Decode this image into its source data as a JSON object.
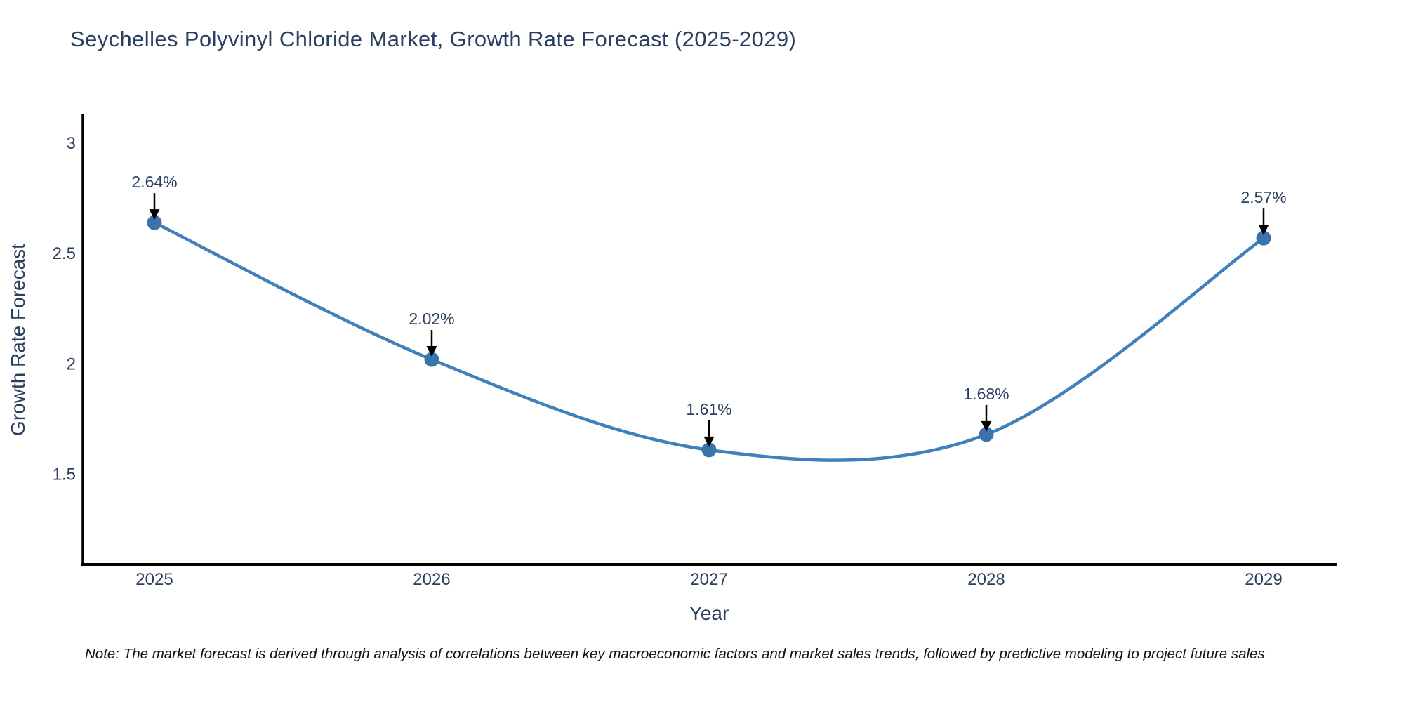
{
  "chart": {
    "title": "Seychelles Polyvinyl Chloride Market, Growth Rate Forecast (2025-2029)",
    "xaxis_title": "Year",
    "yaxis_title": "Growth Rate Forecast"
  },
  "note": "Note: The market forecast is derived through analysis of correlations between key macroeconomic factors and market sales trends, followed by predictive modeling to project future sales",
  "chart_data": {
    "type": "line",
    "title": "Seychelles Polyvinyl Chloride Market, Growth Rate Forecast (2025-2029)",
    "xlabel": "Year",
    "ylabel": "Growth Rate Forecast",
    "x": [
      2025,
      2026,
      2027,
      2028,
      2029
    ],
    "y": [
      2.64,
      2.02,
      1.61,
      1.68,
      2.57
    ],
    "point_labels": [
      "2.64%",
      "2.02%",
      "1.61%",
      "1.68%",
      "2.57%"
    ],
    "yticks": [
      "3",
      "2.5",
      "2",
      "1.5"
    ],
    "ytick_values": [
      3,
      2.5,
      2,
      1.5
    ],
    "ylim": [
      1.09,
      3.13
    ],
    "line_shape": "spline",
    "grid": false,
    "legend": "none",
    "colors": {
      "line": "#4080bd",
      "marker": "#3a74ab",
      "arrow": "#000000",
      "axis_line": "#000000",
      "text": "#2a3f5f"
    }
  }
}
